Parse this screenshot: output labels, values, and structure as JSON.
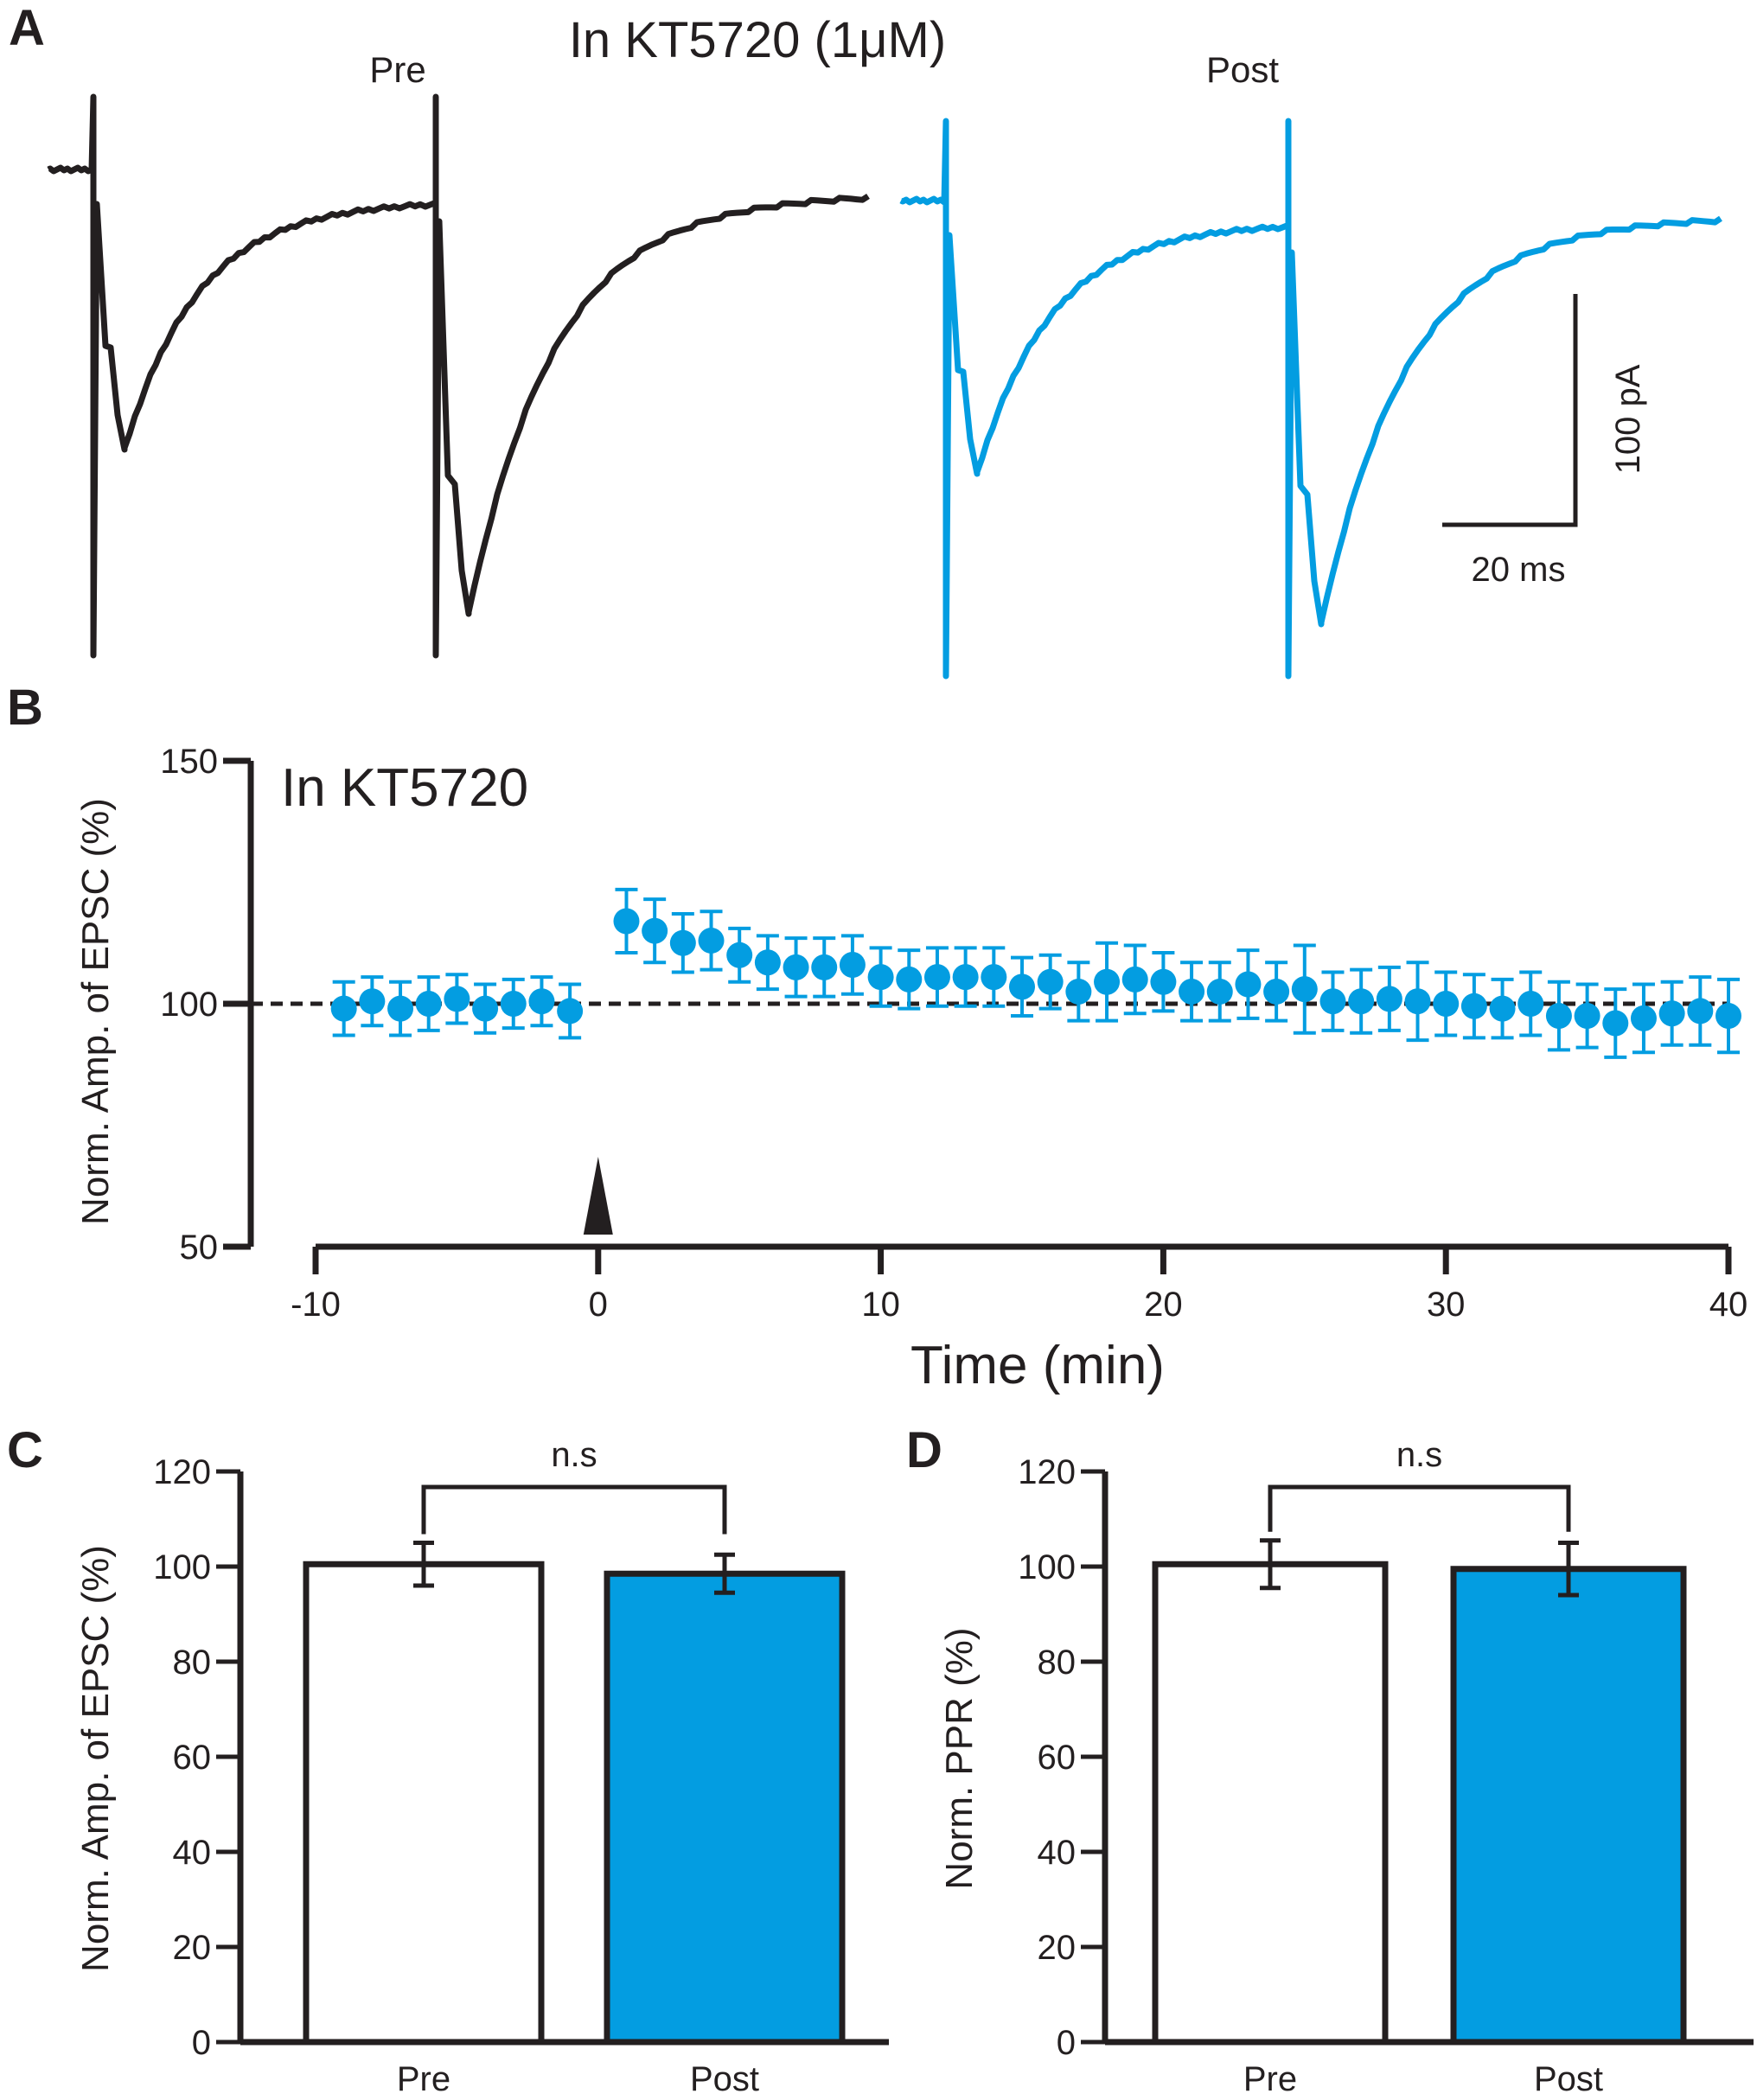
{
  "colors": {
    "dark": "#231f20",
    "blue": "#039de1",
    "white": "#ffffff"
  },
  "panel_labels": {
    "a": "A",
    "b": "B",
    "c": "C",
    "d": "D"
  },
  "panel_a": {
    "title": "In  KT5720 (1μM)",
    "pre_label": "Pre",
    "post_label": "Post",
    "scale_y": "100 pA",
    "scale_x": "20 ms"
  },
  "chart_data": [
    {
      "type": "scatter",
      "id": "time-course",
      "title": "In KT5720",
      "xlabel": "Time (min)",
      "ylabel": "Norm. Amp. of EPSC (%)",
      "xlim": [
        -10,
        40
      ],
      "ylim": [
        50,
        150
      ],
      "xticks": [
        "-10",
        "0",
        "10",
        "20",
        "30",
        "40"
      ],
      "yticks": [
        "50",
        "100",
        "150"
      ],
      "reference_line": 100,
      "stimulus_marker_time": 0,
      "x": [
        -9,
        -8,
        -7,
        -6,
        -5,
        -4,
        -3,
        -2,
        -1,
        1,
        2,
        3,
        4,
        5,
        6,
        7,
        8,
        9,
        10,
        11,
        12,
        13,
        14,
        15,
        16,
        17,
        18,
        19,
        20,
        21,
        22,
        23,
        24,
        25,
        26,
        27,
        28,
        29,
        30,
        31,
        32,
        33,
        34,
        35,
        36,
        37,
        38,
        39,
        40
      ],
      "y": [
        99,
        100.5,
        99,
        100,
        101,
        99,
        100,
        100.5,
        98.5,
        117,
        115,
        112.5,
        113,
        110,
        108.5,
        107.5,
        107.5,
        108,
        105.5,
        105,
        105.5,
        105.5,
        105.5,
        103.5,
        104.5,
        102.5,
        104.5,
        105,
        104.5,
        102.5,
        102.5,
        104,
        102.5,
        103,
        100.5,
        100.5,
        101,
        100.5,
        100,
        99.5,
        99,
        100,
        97.5,
        97.5,
        96,
        97,
        98,
        98.5,
        97.5
      ],
      "err": [
        5.5,
        5,
        5.5,
        5.5,
        5,
        5,
        5,
        5,
        5.5,
        6.5,
        6.5,
        6,
        6,
        5.5,
        5.5,
        6,
        6,
        6,
        6,
        6,
        6,
        6,
        6,
        6,
        5.5,
        6,
        8,
        7,
        6,
        6,
        6,
        7,
        6,
        9,
        6,
        6.5,
        6.5,
        8,
        6.5,
        6.5,
        6,
        6.5,
        7,
        6.5,
        7,
        7,
        6.5,
        7,
        7.5
      ]
    },
    {
      "type": "bar",
      "id": "amp-bars",
      "categories": [
        "Pre",
        "Post"
      ],
      "values": [
        100.5,
        98.5
      ],
      "errors": [
        4.5,
        4
      ],
      "ylabel": "Norm. Amp. of EPSC (%)",
      "ylim": [
        0,
        120
      ],
      "yticks": [
        "0",
        "20",
        "40",
        "60",
        "80",
        "100",
        "120"
      ],
      "significance": "n.s"
    },
    {
      "type": "bar",
      "id": "ppr-bars",
      "categories": [
        "Pre",
        "Post"
      ],
      "values": [
        100.5,
        99.5
      ],
      "errors": [
        5,
        5.5
      ],
      "ylabel": "Norm. PPR (%)",
      "ylim": [
        0,
        120
      ],
      "yticks": [
        "0",
        "20",
        "40",
        "60",
        "80",
        "100",
        "120"
      ],
      "significance": "n.s"
    }
  ]
}
